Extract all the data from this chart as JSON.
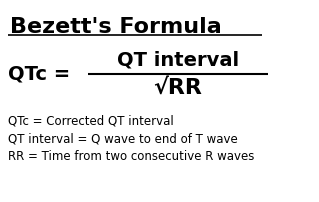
{
  "title": "Bezett's Formula",
  "background_color": "#ffffff",
  "text_color": "#000000",
  "formula_lhs": "QTc = ",
  "formula_numerator": "QT interval",
  "formula_denominator": "√RR",
  "legend_line1": "QTc = Corrected QT interval",
  "legend_line2": "QT interval = Q wave to end of T wave",
  "legend_line3": "RR = Time from two consecutive R waves",
  "title_fontsize": 16,
  "formula_fontsize": 14,
  "legend_fontsize": 8.5,
  "fig_width": 3.19,
  "fig_height": 2.02,
  "dpi": 100
}
